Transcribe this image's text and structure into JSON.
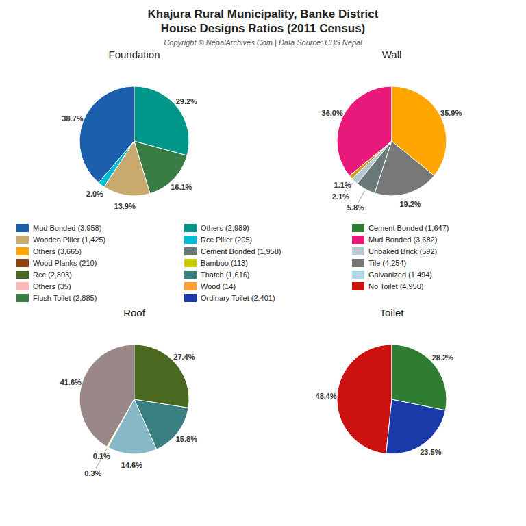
{
  "title": "Khajura Rural Municipality, Banke District\nHouse Designs Ratios (2011 Census)",
  "subtitle": "Copyright © NepalArchives.Com | Data Source: CBS Nepal",
  "chart_data": [
    {
      "type": "pie",
      "title": "Foundation",
      "values": [
        38.7,
        2.0,
        13.9,
        16.1,
        29.2
      ],
      "value_labels": [
        "38.7%",
        "2.0%",
        "13.9%",
        "16.1%",
        "29.2%"
      ],
      "colors": [
        "#1c5fad",
        "#00bcd4",
        "#c8a96e",
        "#3a7d44",
        "#00968a"
      ],
      "data_labels": true
    },
    {
      "type": "pie",
      "title": "Wall",
      "values": [
        36.0,
        1.1,
        2.1,
        5.8,
        19.2,
        35.9
      ],
      "value_labels": [
        "36.0%",
        "1.1%",
        "2.1%",
        "5.8%",
        "19.2%",
        "35.9%"
      ],
      "colors": [
        "#e8197a",
        "#c8a020",
        "#b8c8d0",
        "#6a7a7a",
        "#787878",
        "#ffa500"
      ],
      "data_labels": true
    },
    {
      "type": "pie",
      "title": "Roof",
      "values": [
        41.6,
        0.1,
        0.3,
        14.6,
        15.8,
        27.4
      ],
      "value_labels": [
        "41.6%",
        "0.1%",
        "0.3%",
        "14.6%",
        "15.8%",
        "27.4%"
      ],
      "colors": [
        "#9a8888",
        "#ffaaaa",
        "#ffff44",
        "#87b8c8",
        "#3a8080",
        "#4a6820"
      ],
      "data_labels": true
    },
    {
      "type": "pie",
      "title": "Toilet",
      "values": [
        48.4,
        23.5,
        28.2
      ],
      "value_labels": [
        "48.4%",
        "23.5%",
        "28.2%"
      ],
      "colors": [
        "#cc1111",
        "#1a3aaa",
        "#2e7d32"
      ],
      "data_labels": true
    }
  ],
  "annotations": [
    {
      "text": "Mud Bonded (3,958)",
      "color": "#1c5fad"
    },
    {
      "text": "Wooden Piller (1,425)",
      "color": "#c8a96e"
    },
    {
      "text": "Others (3,665)",
      "color": "#ffa500"
    },
    {
      "text": "Wood Planks (210)",
      "color": "#8B4513"
    },
    {
      "text": "Rcc (2,803)",
      "color": "#4a6820"
    },
    {
      "text": "Others (35)",
      "color": "#ffb6b6"
    },
    {
      "text": "Flush Toilet (2,885)",
      "color": "#3a7d44"
    },
    {
      "text": "Others (2,989)",
      "color": "#00968a"
    },
    {
      "text": "Rcc Piller (205)",
      "color": "#00bcd4"
    },
    {
      "text": "Cement Bonded (1,958)",
      "color": "#6a7a7a"
    },
    {
      "text": "Bamboo (113)",
      "color": "#cccc00"
    },
    {
      "text": "Thatch (1,616)",
      "color": "#3a8080"
    },
    {
      "text": "Wood (14)",
      "color": "#ffa030"
    },
    {
      "text": "Ordinary Toilet (2,401)",
      "color": "#1a3aaa"
    },
    {
      "text": "Cement Bonded (1,647)",
      "color": "#2e7d32"
    },
    {
      "text": "Mud Bonded (3,682)",
      "color": "#e8197a"
    },
    {
      "text": "Unbaked Brick (592)",
      "color": "#b8c8d0"
    },
    {
      "text": "Tile (4,254)",
      "color": "#787878"
    },
    {
      "text": "Galvanized (1,494)",
      "color": "#add8e6"
    },
    {
      "text": "No Toilet (4,950)",
      "color": "#cc1111"
    }
  ]
}
